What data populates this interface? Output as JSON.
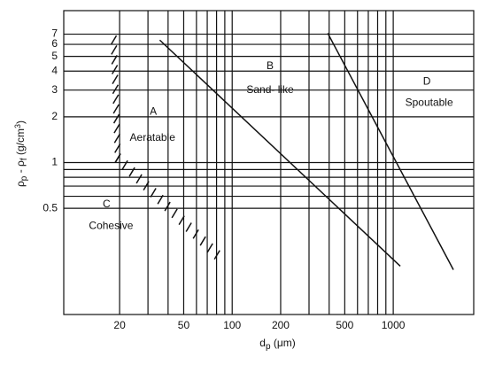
{
  "chart_data": {
    "type": "line",
    "xlabel": [
      {
        "text": "d"
      },
      {
        "text": "p",
        "sub": true
      },
      {
        "text": " (μm)"
      }
    ],
    "ylabel": [
      {
        "text": "ρ"
      },
      {
        "text": "p",
        "sub": true
      },
      {
        "text": " - ρ"
      },
      {
        "text": "f",
        "sub": true
      },
      {
        "text": "  (g/cm"
      },
      {
        "text": "3",
        "sup": true
      },
      {
        "text": ")"
      }
    ],
    "xscale": "log",
    "yscale": "log",
    "grid": true,
    "xlim": [
      9,
      3160
    ],
    "ylim": [
      0.1,
      10
    ],
    "xticks": [
      20,
      50,
      100,
      200,
      500,
      1000
    ],
    "xminor": [
      30,
      40,
      60,
      70,
      80,
      90,
      300,
      400,
      600,
      700,
      800,
      900
    ],
    "yticks": [
      0.5,
      1,
      2,
      3,
      4,
      5,
      6,
      7
    ],
    "yminor": [
      0.6,
      0.7,
      0.8,
      0.9
    ],
    "series": [
      {
        "color": "#111111",
        "style": "hatched",
        "x": [
          18.4,
          19.5,
          80.6
        ],
        "y": [
          6.4,
          1.07,
          0.247
        ]
      },
      {
        "color": "#111111",
        "style": "solid",
        "x": [
          35.5,
          1106
        ],
        "y": [
          6.4,
          0.208
        ]
      },
      {
        "color": "#111111",
        "style": "solid",
        "x": [
          392,
          2363
        ],
        "y": [
          7.1,
          0.197
        ]
      }
    ],
    "annotations": [
      {
        "text": "A",
        "x": 32.4,
        "y": 2.16
      },
      {
        "text": "Aeratable",
        "x": 32,
        "y": 1.45
      },
      {
        "text": "B",
        "x": 172,
        "y": 4.3
      },
      {
        "text": "Sand- like",
        "x": 172,
        "y": 3.0
      },
      {
        "text": "C",
        "x": 16.6,
        "y": 0.53
      },
      {
        "text": "Cohesive",
        "x": 17.7,
        "y": 0.38
      },
      {
        "text": "D",
        "x": 1617,
        "y": 3.4
      },
      {
        "text": "Spoutable",
        "x": 1670,
        "y": 2.47
      }
    ]
  }
}
